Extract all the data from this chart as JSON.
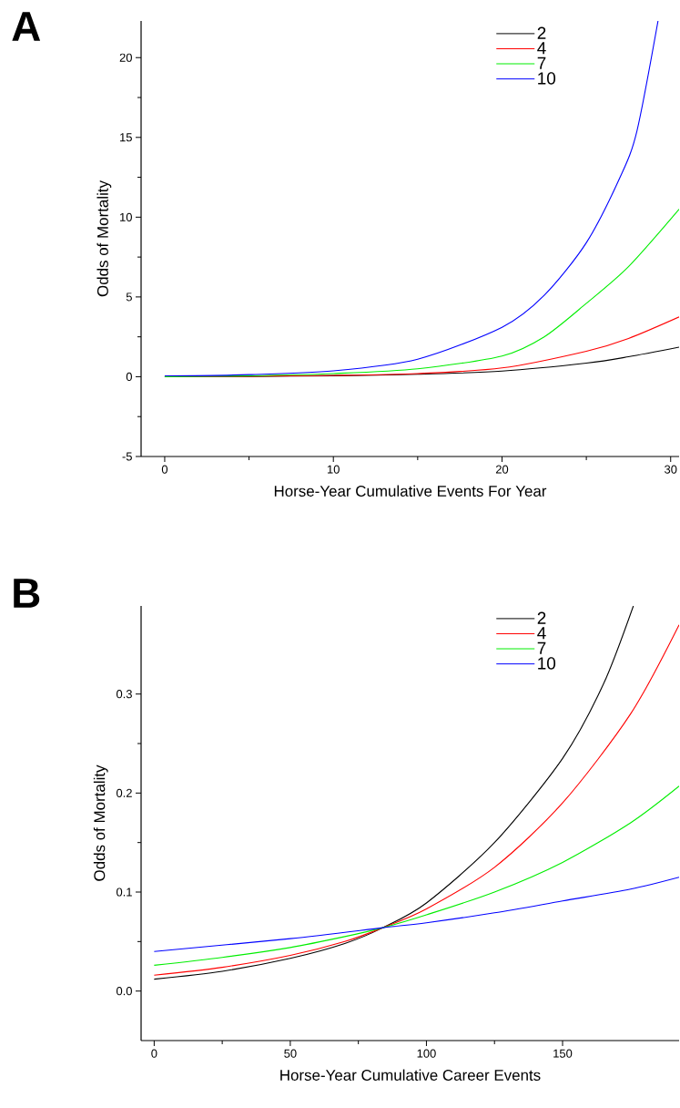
{
  "chart_data": [
    {
      "type": "line",
      "title": "A",
      "xlabel": "Horse-Year Cumulative Events For Year",
      "ylabel": "Odds of Mortality",
      "xlim": [
        -1.4,
        30.5
      ],
      "ylim": [
        -5,
        22.3
      ],
      "xticks": [
        0,
        10,
        20,
        30
      ],
      "yticks": [
        -5,
        0,
        5,
        10,
        15,
        20
      ],
      "grid": false,
      "legend": "top right",
      "marker": "none",
      "line_style": "solid",
      "series": [
        {
          "name": "2",
          "color": "#000000",
          "x": [
            0,
            5,
            10,
            15,
            20,
            25,
            27.5,
            30.5
          ],
          "values": [
            0,
            0.02,
            0.06,
            0.15,
            0.35,
            0.85,
            1.25,
            1.85
          ]
        },
        {
          "name": "4",
          "color": "#ff0000",
          "x": [
            0,
            5,
            10,
            15,
            20,
            25,
            27.5,
            30.5
          ],
          "values": [
            0,
            0.03,
            0.08,
            0.2,
            0.55,
            1.6,
            2.4,
            3.75
          ]
        },
        {
          "name": "7",
          "color": "#00ee00",
          "x": [
            0,
            5,
            10,
            15,
            20,
            22.5,
            25,
            27.5,
            30.5
          ],
          "values": [
            0,
            0.06,
            0.2,
            0.5,
            1.3,
            2.5,
            4.6,
            6.9,
            10.5
          ]
        },
        {
          "name": "10",
          "color": "#0000ff",
          "x": [
            0,
            5,
            10,
            15,
            20,
            22.5,
            25,
            27,
            28,
            29.25
          ],
          "values": [
            0.05,
            0.13,
            0.37,
            1.1,
            3.1,
            5.1,
            8.4,
            12.5,
            15.4,
            22.3
          ]
        }
      ]
    },
    {
      "type": "line",
      "title": "B",
      "xlabel": "Horse-Year Cumulative Career Events",
      "ylabel": "Odds of Mortality",
      "xlim": [
        -4.8,
        192.8
      ],
      "ylim": [
        -0.05,
        0.389
      ],
      "xticks": [
        0,
        50,
        100,
        150
      ],
      "yticks": [
        {
          "value": 0,
          "label": "0.0"
        },
        0.1,
        0.2,
        0.3
      ],
      "grid": false,
      "legend": "top right",
      "marker": "none",
      "line_style": "solid",
      "series": [
        {
          "name": "2",
          "color": "#000000",
          "x": [
            0,
            25,
            50,
            70,
            84,
            100,
            125,
            150,
            165,
            176
          ],
          "values": [
            0.012,
            0.02,
            0.033,
            0.048,
            0.064,
            0.089,
            0.15,
            0.235,
            0.31,
            0.389
          ]
        },
        {
          "name": "4",
          "color": "#ff0000",
          "x": [
            0,
            25,
            50,
            70,
            84,
            100,
            125,
            150,
            175,
            192.8
          ],
          "values": [
            0.016,
            0.024,
            0.036,
            0.05,
            0.064,
            0.083,
            0.125,
            0.19,
            0.28,
            0.37
          ]
        },
        {
          "name": "7",
          "color": "#00ee00",
          "x": [
            0,
            25,
            50,
            70,
            84,
            100,
            125,
            150,
            175,
            192.8
          ],
          "values": [
            0.026,
            0.034,
            0.044,
            0.055,
            0.064,
            0.077,
            0.1,
            0.13,
            0.17,
            0.207
          ]
        },
        {
          "name": "10",
          "color": "#0000ff",
          "x": [
            0,
            50,
            84,
            100,
            125,
            150,
            175,
            192.8
          ],
          "values": [
            0.04,
            0.053,
            0.064,
            0.069,
            0.079,
            0.091,
            0.103,
            0.115
          ]
        }
      ]
    }
  ]
}
